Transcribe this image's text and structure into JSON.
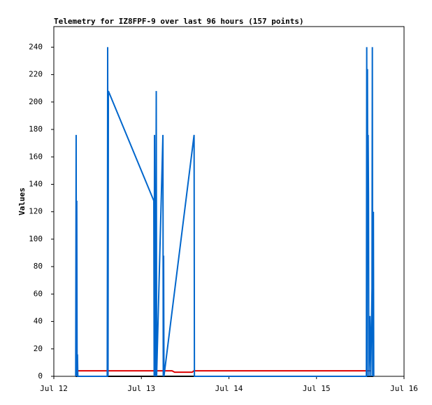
{
  "chart_data": {
    "type": "line",
    "title": "Telemetry for IZ8FPF-9 over last 96 hours (157 points)",
    "ylabel": "Values",
    "xlim": [
      0,
      4
    ],
    "ylim": [
      0,
      255
    ],
    "xticks": [
      {
        "value": 0,
        "label": "Jul 12"
      },
      {
        "value": 1,
        "label": "Jul 13"
      },
      {
        "value": 2,
        "label": "Jul 14"
      },
      {
        "value": 3,
        "label": "Jul 15"
      },
      {
        "value": 4,
        "label": "Jul 16"
      }
    ],
    "yticks": [
      0,
      20,
      40,
      60,
      80,
      100,
      120,
      140,
      160,
      180,
      200,
      220,
      240
    ],
    "series": [
      {
        "color": "#000000",
        "x": [
          0.25,
          3.65
        ],
        "values": [
          0,
          0
        ]
      },
      {
        "color": "#dd0000",
        "x": [
          0.27,
          1.35,
          1.38,
          1.58,
          1.6,
          3.62
        ],
        "values": [
          4,
          4,
          3,
          3,
          4,
          4
        ]
      },
      {
        "color": "#0066cc",
        "x": [
          0.25,
          0.255,
          0.258,
          0.262,
          0.266,
          0.27,
          0.274,
          0.61,
          0.613,
          0.615,
          0.619,
          0.623,
          1.142,
          1.146,
          1.15,
          1.154,
          1.158,
          1.162,
          1.17,
          1.174,
          1.246,
          1.25,
          1.254,
          1.258,
          1.602,
          1.606,
          3.57,
          3.574,
          3.578,
          3.582,
          3.586,
          3.59,
          3.594,
          3.598,
          3.61,
          3.62,
          3.634,
          3.638,
          3.642,
          3.65,
          3.654
        ],
        "values": [
          0,
          176,
          0,
          128,
          0,
          16,
          0,
          0,
          112,
          240,
          0,
          208,
          128,
          0,
          176,
          64,
          112,
          0,
          208,
          0,
          176,
          0,
          88,
          0,
          176,
          0,
          0,
          240,
          0,
          224,
          112,
          176,
          132,
          0,
          44,
          0,
          64,
          240,
          0,
          120,
          0
        ]
      }
    ]
  }
}
